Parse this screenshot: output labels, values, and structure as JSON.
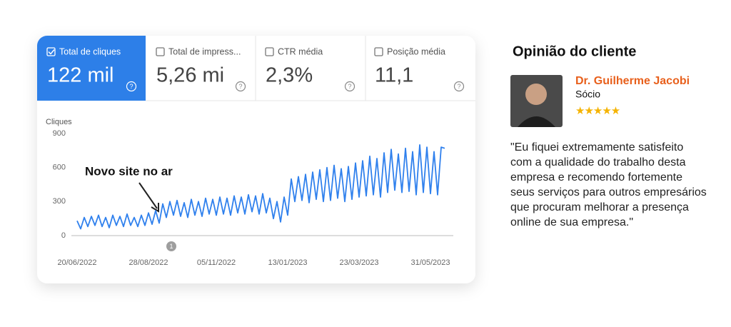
{
  "metrics": [
    {
      "label": "Total de cliques",
      "value": "122 mil"
    },
    {
      "label": "Total de impress...",
      "value": "5,26 mi"
    },
    {
      "label": "CTR média",
      "value": "2,3%"
    },
    {
      "label": "Posição média",
      "value": "11,1"
    }
  ],
  "chart_data": {
    "type": "line",
    "y_label": "Cliques",
    "annotation": "Novo site no ar",
    "marker": "1",
    "series": [
      {
        "name": "Cliques",
        "color": "#2f80ed",
        "values": [
          130,
          60,
          160,
          80,
          170,
          90,
          180,
          80,
          160,
          70,
          180,
          90,
          170,
          80,
          190,
          90,
          160,
          80,
          180,
          90,
          200,
          100,
          220,
          110,
          280,
          160,
          300,
          180,
          310,
          170,
          290,
          160,
          320,
          180,
          300,
          170,
          330,
          190,
          320,
          180,
          340,
          190,
          330,
          180,
          350,
          200,
          340,
          190,
          360,
          210,
          350,
          190,
          370,
          200,
          330,
          150,
          300,
          120,
          340,
          180,
          500,
          300,
          520,
          310,
          540,
          290,
          560,
          320,
          580,
          300,
          600,
          310,
          620,
          330,
          590,
          300,
          610,
          320,
          640,
          340,
          660,
          350,
          700,
          360,
          680,
          340,
          730,
          380,
          760,
          400,
          720,
          380,
          770,
          390,
          740,
          360,
          800,
          380,
          780,
          370,
          740,
          360,
          780,
          770
        ]
      }
    ],
    "xlim": [
      0,
      103
    ],
    "xticks": [
      {
        "value": 0,
        "label": "20/06/2022"
      },
      {
        "value": 20,
        "label": "28/08/2022"
      },
      {
        "value": 39,
        "label": "05/11/2022"
      },
      {
        "value": 59,
        "label": "13/01/2023"
      },
      {
        "value": 79,
        "label": "23/03/2023"
      },
      {
        "value": 99,
        "label": "31/05/2023"
      }
    ],
    "ylim": [
      0,
      900
    ],
    "yticks": [
      0,
      300,
      600,
      900
    ]
  },
  "testimonial": {
    "title": "Opinião do cliente",
    "name": "Dr. Guilherme Jacobi",
    "role": "Sócio",
    "quote": "\"Eu fiquei extremamente satisfeito com a qualidade do trabalho desta empresa e recomendo fortemente seus serviços para outros empresários que procuram melhorar a presença online de sua empresa.\""
  }
}
